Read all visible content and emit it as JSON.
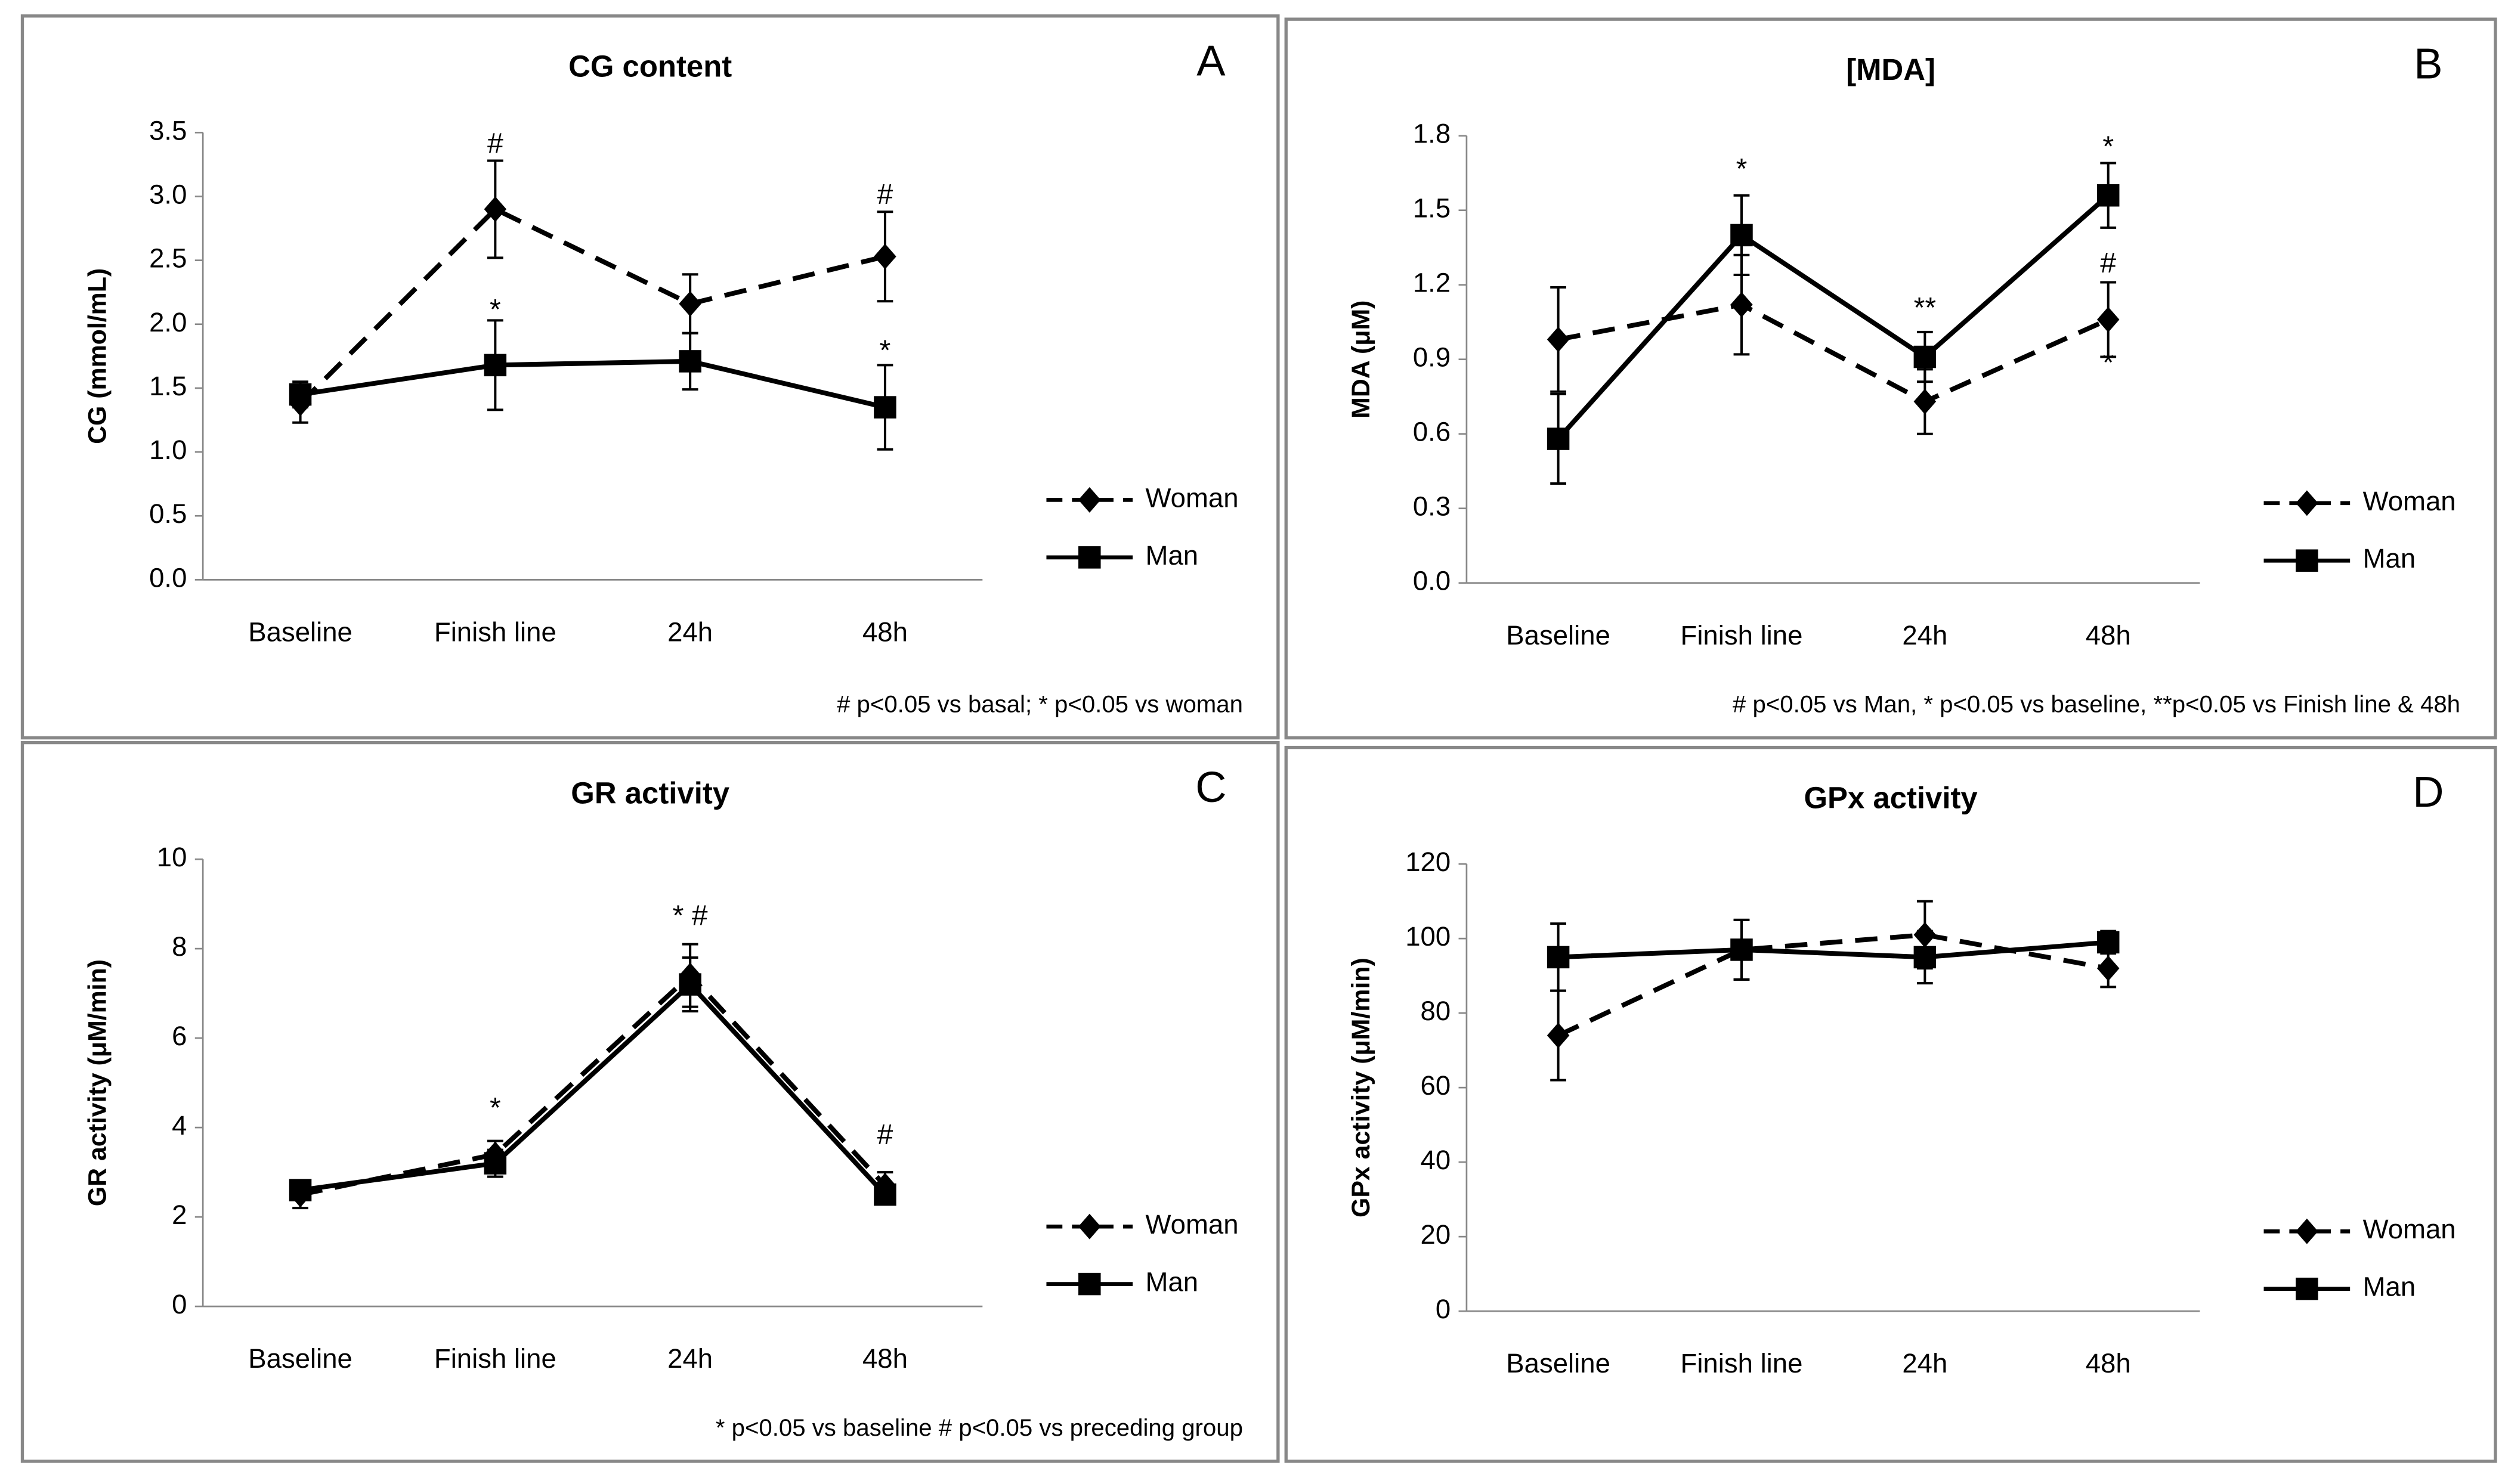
{
  "chart_data": [
    {
      "type": "line",
      "panel": "A",
      "title": "CG content",
      "ylabel": "CG (mmol/mL)",
      "categories": [
        "Baseline",
        "Finish line",
        "24h",
        "48h"
      ],
      "series": [
        {
          "name": "Woman",
          "color": "#000000",
          "line_style": "dashed",
          "marker": "diamond",
          "values": [
            1.38,
            2.9,
            2.16,
            2.53
          ],
          "errors": [
            0.15,
            0.38,
            0.23,
            0.35
          ]
        },
        {
          "name": "Man",
          "color": "#000000",
          "line_style": "solid",
          "marker": "square",
          "values": [
            1.45,
            1.68,
            1.71,
            1.35
          ],
          "errors": [
            0.1,
            0.35,
            0.22,
            0.33
          ]
        }
      ],
      "ylim": [
        0,
        3.5
      ],
      "yticks": [
        {
          "value": 0,
          "label": "0.0"
        },
        0.5,
        {
          "value": 1,
          "label": "1.0"
        },
        1.5,
        {
          "value": 2,
          "label": "2.0"
        },
        2.5,
        {
          "value": 3,
          "label": "3.0"
        },
        3.5
      ],
      "annotations": [
        {
          "text": "#",
          "x": "Finish line",
          "y": 3.4
        },
        {
          "text": "*",
          "x": "Finish line",
          "y": 2.1
        },
        {
          "text": "#",
          "x": "48h",
          "y": 3.0
        },
        {
          "text": "*",
          "x": "48h",
          "y": 1.78
        }
      ],
      "footnote": "# p<0.05 vs basal; * p<0.05 vs woman"
    },
    {
      "type": "line",
      "panel": "B",
      "title": "[MDA]",
      "ylabel": "MDA (μM)",
      "categories": [
        "Baseline",
        "Finish line",
        "24h",
        "48h"
      ],
      "series": [
        {
          "name": "Woman",
          "color": "#000000",
          "line_style": "dashed",
          "marker": "diamond",
          "values": [
            0.98,
            1.12,
            0.73,
            1.06
          ],
          "errors": [
            0.21,
            0.2,
            0.13,
            0.15
          ]
        },
        {
          "name": "Man",
          "color": "#000000",
          "line_style": "solid",
          "marker": "square",
          "values": [
            0.58,
            1.4,
            0.91,
            1.56
          ],
          "errors": [
            0.18,
            0.16,
            0.1,
            0.13
          ]
        }
      ],
      "ylim": [
        0,
        1.8
      ],
      "yticks": [
        {
          "value": 0,
          "label": "0.0"
        },
        0.3,
        0.6,
        0.9,
        1.2,
        1.5,
        1.8
      ],
      "annotations": [
        {
          "text": "*",
          "x": "Finish line",
          "y": 1.66
        },
        {
          "text": "**",
          "x": "24h",
          "y": 1.1
        },
        {
          "text": "*",
          "x": "48h",
          "y": 1.75
        },
        {
          "text": "#",
          "x": "48h",
          "y": 1.28
        },
        {
          "text": "*",
          "x": "48h",
          "y": 0.88
        }
      ],
      "footnote": "# p<0.05 vs Man, * p<0.05 vs baseline, **p<0.05 vs Finish line & 48h"
    },
    {
      "type": "line",
      "panel": "C",
      "title": "GR activity",
      "ylabel": "GR activity (μM/min)",
      "categories": [
        "Baseline",
        "Finish line",
        "24h",
        "48h"
      ],
      "series": [
        {
          "name": "Woman",
          "color": "#000000",
          "line_style": "dashed",
          "marker": "diamond",
          "values": [
            2.5,
            3.4,
            7.4,
            2.7
          ],
          "errors": [
            0.3,
            0.3,
            0.7,
            0.3
          ]
        },
        {
          "name": "Man",
          "color": "#000000",
          "line_style": "solid",
          "marker": "square",
          "values": [
            2.6,
            3.2,
            7.2,
            2.5
          ],
          "errors": [
            0.2,
            0.3,
            0.6,
            0.2
          ]
        }
      ],
      "ylim": [
        0,
        10
      ],
      "yticks": [
        0,
        2,
        4,
        6,
        8,
        10
      ],
      "annotations": [
        {
          "text": "*",
          "x": "Finish line",
          "y": 4.4
        },
        {
          "text": "* #",
          "x": "24h",
          "y": 8.7
        },
        {
          "text": "#",
          "x": "48h",
          "y": 3.8
        }
      ],
      "footnote": "* p<0.05 vs baseline # p<0.05 vs preceding group"
    },
    {
      "type": "line",
      "panel": "D",
      "title": "GPx activity",
      "ylabel": "GPx activity (μM/min)",
      "categories": [
        "Baseline",
        "Finish line",
        "24h",
        "48h"
      ],
      "series": [
        {
          "name": "Woman",
          "color": "#000000",
          "line_style": "dashed",
          "marker": "diamond",
          "values": [
            74,
            97,
            101,
            92
          ],
          "errors": [
            12,
            8,
            9,
            5
          ]
        },
        {
          "name": "Man",
          "color": "#000000",
          "line_style": "solid",
          "marker": "square",
          "values": [
            95,
            97,
            95,
            99
          ],
          "errors": [
            9,
            8,
            7,
            3
          ]
        }
      ],
      "ylim": [
        0,
        120
      ],
      "yticks": [
        0,
        20,
        40,
        60,
        80,
        100,
        120
      ],
      "annotations": []
    }
  ]
}
